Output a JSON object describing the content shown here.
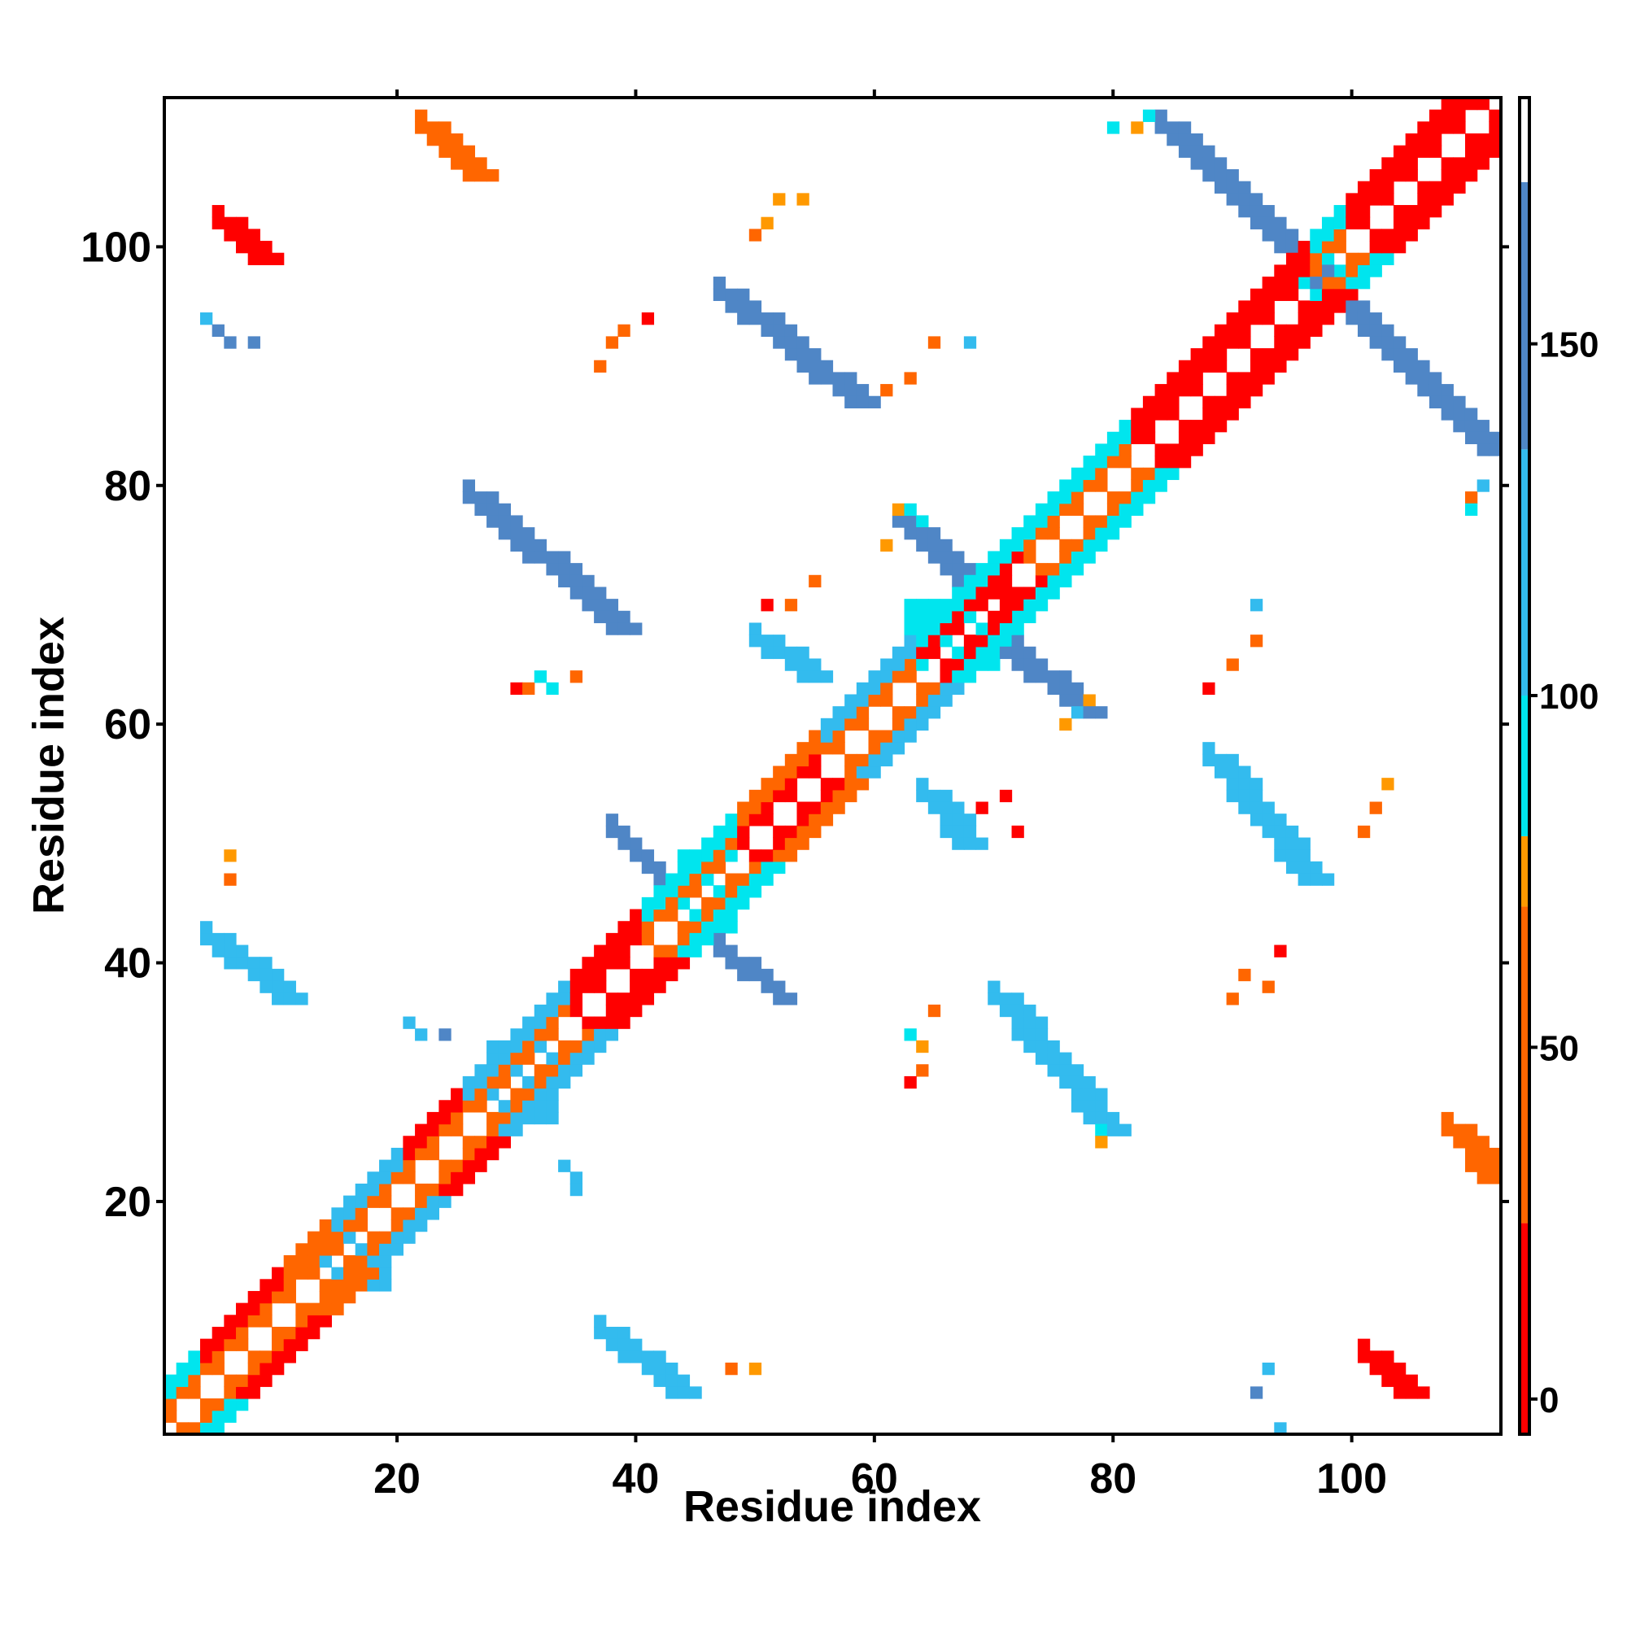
{
  "chart_data": {
    "type": "heatmap",
    "title": "",
    "xlabel": "Residue index",
    "ylabel": "Residue index",
    "xlim": [
      0.5,
      112.5
    ],
    "ylim": [
      0.5,
      112.5
    ],
    "x_ticks": [
      20,
      40,
      60,
      80,
      100
    ],
    "y_ticks": [
      20,
      40,
      60,
      80,
      100
    ],
    "colorbar": {
      "range": [
        -5,
        185
      ],
      "ticks": [
        0,
        50,
        100,
        150
      ],
      "bands": [
        {
          "from": -5,
          "to": 25,
          "color": "#ff0000"
        },
        {
          "from": 25,
          "to": 70,
          "color": "#ff6600"
        },
        {
          "from": 70,
          "to": 80,
          "color": "#ff9900"
        },
        {
          "from": 80,
          "to": 100,
          "color": "#00e5ee"
        },
        {
          "from": 100,
          "to": 135,
          "color": "#33bbee"
        },
        {
          "from": 135,
          "to": 173,
          "color": "#4f86c6"
        },
        {
          "from": 173,
          "to": 185,
          "color": "#ffffff"
        }
      ]
    },
    "value_to_color": {
      "0": "#ff0000",
      "40": "#ff6600",
      "75": "#ff9900",
      "90": "#00e5ee",
      "120": "#33bbee",
      "160": "#4f86c6"
    },
    "grid": false,
    "diagonal": {
      "from": 1,
      "to": 112
    },
    "diagonal_segments": [
      {
        "from": 1,
        "to": 3,
        "near": 40,
        "far": 90
      },
      {
        "from": 4,
        "to": 10,
        "near": 40,
        "far": 0
      },
      {
        "from": 11,
        "to": 14,
        "near": 40,
        "far": 40
      },
      {
        "from": 15,
        "to": 20,
        "near": 40,
        "far": 120
      },
      {
        "from": 21,
        "to": 25,
        "near": 40,
        "far": 0
      },
      {
        "from": 26,
        "to": 34,
        "near": 40,
        "far": 120
      },
      {
        "from": 35,
        "to": 40,
        "near": 0,
        "far": 0
      },
      {
        "from": 41,
        "to": 48,
        "near": 40,
        "far": 90
      },
      {
        "from": 49,
        "to": 55,
        "near": 0,
        "far": 40
      },
      {
        "from": 56,
        "to": 63,
        "near": 40,
        "far": 120
      },
      {
        "from": 64,
        "to": 72,
        "near": 0,
        "far": 90
      },
      {
        "from": 73,
        "to": 81,
        "near": 40,
        "far": 90
      },
      {
        "from": 82,
        "to": 96,
        "near": 0,
        "far": 0
      },
      {
        "from": 97,
        "to": 99,
        "near": 40,
        "far": 90
      },
      {
        "from": 100,
        "to": 112,
        "near": 0,
        "far": 0
      }
    ],
    "contact_blocks": [
      {
        "x0": 13,
        "x1": 19,
        "y0": 13,
        "y1": 17,
        "value": 120
      },
      {
        "x0": 28,
        "x1": 33,
        "y0": 27,
        "y1": 33,
        "value": 120
      },
      {
        "x0": 44,
        "x1": 48,
        "y0": 43,
        "y1": 49,
        "value": 90
      },
      {
        "x0": 63,
        "x1": 70,
        "y0": 65,
        "y1": 70,
        "value": 90
      },
      {
        "x0": 96,
        "x1": 99,
        "y0": 95,
        "y1": 99,
        "value": 90
      }
    ],
    "contact_streaks": [
      {
        "x0": 26,
        "y0": 79,
        "x1": 38,
        "y1": 68,
        "width": 3,
        "value": 160
      },
      {
        "x0": 47,
        "y0": 96,
        "x1": 58,
        "y1": 87,
        "width": 3,
        "value": 160
      },
      {
        "x0": 62,
        "y0": 77,
        "x1": 68,
        "y1": 71,
        "width": 3,
        "value": 160
      },
      {
        "x0": 70,
        "y0": 67,
        "x1": 77,
        "y1": 61,
        "width": 3,
        "value": 160
      },
      {
        "x0": 84,
        "y0": 110,
        "x1": 97,
        "y1": 97,
        "width": 3,
        "value": 160
      },
      {
        "x0": 98,
        "y0": 96,
        "x1": 111,
        "y1": 83,
        "width": 3,
        "value": 160
      },
      {
        "x0": 70,
        "y0": 37,
        "x1": 79,
        "y1": 26,
        "width": 3,
        "value": 120
      },
      {
        "x0": 88,
        "y0": 57,
        "x1": 96,
        "y1": 47,
        "width": 3,
        "value": 120
      },
      {
        "x0": 4,
        "y0": 42,
        "x1": 10,
        "y1": 37,
        "width": 3,
        "value": 120
      },
      {
        "x0": 37,
        "y0": 9,
        "x1": 43,
        "y1": 4,
        "width": 3,
        "value": 120
      },
      {
        "x0": 38,
        "y0": 51,
        "x1": 43,
        "y1": 46,
        "width": 2,
        "value": 160
      },
      {
        "x0": 47,
        "y0": 41,
        "x1": 52,
        "y1": 37,
        "width": 2,
        "value": 160
      },
      {
        "x0": 50,
        "y0": 67,
        "x1": 54,
        "y1": 64,
        "width": 3,
        "value": 120
      },
      {
        "x0": 64,
        "y0": 54,
        "x1": 67,
        "y1": 50,
        "width": 3,
        "value": 120
      },
      {
        "x0": 22,
        "y0": 110,
        "x1": 26,
        "y1": 106,
        "width": 3,
        "value": 40
      },
      {
        "x0": 5,
        "y0": 102,
        "x1": 8,
        "y1": 99,
        "width": 3,
        "value": 0
      },
      {
        "x0": 108,
        "y0": 26,
        "x1": 111,
        "y1": 22,
        "width": 3,
        "value": 40
      },
      {
        "x0": 101,
        "y0": 7,
        "x1": 104,
        "y1": 4,
        "width": 3,
        "value": 0
      },
      {
        "x0": 69,
        "y0": 72,
        "x1": 72,
        "y1": 69,
        "width": 2,
        "value": 0
      }
    ],
    "contact_points": [
      [
        4,
        94,
        120
      ],
      [
        5,
        93,
        160
      ],
      [
        6,
        92,
        160
      ],
      [
        8,
        92,
        160
      ],
      [
        6,
        49,
        75
      ],
      [
        6,
        47,
        40
      ],
      [
        21,
        35,
        120
      ],
      [
        22,
        34,
        120
      ],
      [
        24,
        34,
        160
      ],
      [
        34,
        23,
        120
      ],
      [
        35,
        22,
        120
      ],
      [
        35,
        21,
        120
      ],
      [
        30,
        63,
        0
      ],
      [
        31,
        63,
        40
      ],
      [
        32,
        64,
        90
      ],
      [
        33,
        63,
        90
      ],
      [
        35,
        64,
        40
      ],
      [
        37,
        90,
        40
      ],
      [
        38,
        92,
        40
      ],
      [
        39,
        93,
        40
      ],
      [
        41,
        94,
        0
      ],
      [
        48,
        6,
        40
      ],
      [
        50,
        6,
        75
      ],
      [
        50,
        101,
        40
      ],
      [
        51,
        102,
        75
      ],
      [
        52,
        104,
        75
      ],
      [
        54,
        104,
        75
      ],
      [
        51,
        70,
        0
      ],
      [
        53,
        70,
        40
      ],
      [
        55,
        72,
        40
      ],
      [
        61,
        88,
        40
      ],
      [
        63,
        89,
        40
      ],
      [
        65,
        92,
        40
      ],
      [
        68,
        92,
        120
      ],
      [
        63,
        34,
        90
      ],
      [
        64,
        33,
        75
      ],
      [
        64,
        31,
        40
      ],
      [
        63,
        30,
        0
      ],
      [
        65,
        36,
        40
      ],
      [
        69,
        53,
        0
      ],
      [
        71,
        54,
        0
      ],
      [
        72,
        51,
        0
      ],
      [
        78,
        62,
        75
      ],
      [
        77,
        61,
        120
      ],
      [
        76,
        60,
        75
      ],
      [
        79,
        25,
        75
      ],
      [
        79,
        26,
        90
      ],
      [
        88,
        63,
        0
      ],
      [
        90,
        65,
        40
      ],
      [
        92,
        67,
        40
      ],
      [
        92,
        70,
        120
      ],
      [
        90,
        37,
        40
      ],
      [
        91,
        39,
        40
      ],
      [
        93,
        38,
        40
      ],
      [
        94,
        41,
        0
      ],
      [
        92,
        4,
        160
      ],
      [
        93,
        6,
        120
      ],
      [
        94,
        1,
        120
      ],
      [
        101,
        51,
        40
      ],
      [
        102,
        53,
        40
      ],
      [
        103,
        55,
        75
      ],
      [
        110,
        79,
        40
      ],
      [
        110,
        78,
        90
      ],
      [
        111,
        80,
        120
      ],
      [
        80,
        110,
        90
      ],
      [
        82,
        110,
        75
      ],
      [
        83,
        111,
        90
      ],
      [
        62,
        78,
        75
      ],
      [
        61,
        75,
        75
      ],
      [
        63,
        78,
        90
      ],
      [
        64,
        77,
        90
      ]
    ]
  }
}
